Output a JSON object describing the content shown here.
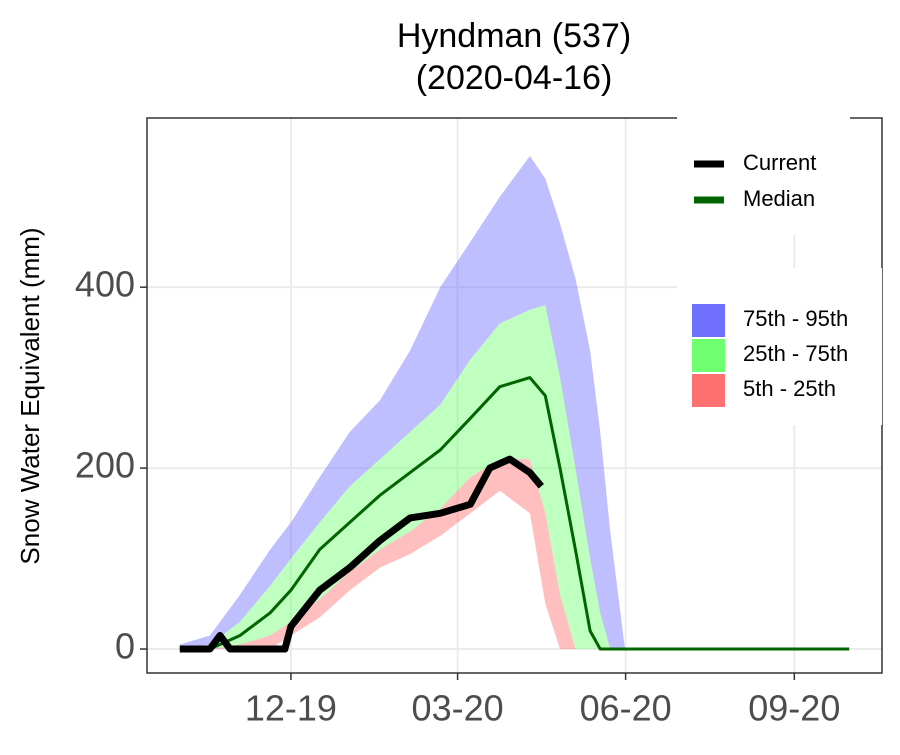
{
  "chart_data": {
    "type": "line",
    "title": "Hyndman (537)",
    "subtitle": "(2020-04-16)",
    "ylabel": "Snow Water Equivalent (mm)",
    "xlim": [
      2019.7,
      2020.798
    ],
    "xticks": [
      {
        "value": 2019.915,
        "label": "12-19"
      },
      {
        "value": 2020.164,
        "label": "03-20"
      },
      {
        "value": 2020.415,
        "label": "06-20"
      },
      {
        "value": 2020.667,
        "label": "09-20"
      }
    ],
    "ylim": [
      -26.5,
      587
    ],
    "yticks": [
      0,
      200,
      400
    ],
    "grid": true,
    "x": [
      2019.749,
      2019.794,
      2019.839,
      2019.884,
      2019.915,
      2019.958,
      2020.003,
      2020.048,
      2020.093,
      2020.138,
      2020.183,
      2020.227,
      2020.272,
      2020.295,
      2020.317,
      2020.34,
      2020.362,
      2020.377,
      2020.392,
      2020.414,
      2020.452,
      2020.526,
      2020.601,
      2020.676,
      2020.749
    ],
    "bands": [
      {
        "name": "75th - 95th",
        "color": "#7070ff",
        "lower": [
          0,
          5,
          30,
          70,
          100,
          140,
          180,
          210,
          240,
          270,
          320,
          360,
          375,
          380,
          300,
          200,
          100,
          40,
          0,
          0,
          0,
          0,
          0,
          0,
          0
        ],
        "upper": [
          5,
          15,
          60,
          110,
          140,
          190,
          240,
          275,
          330,
          400,
          450,
          500,
          545,
          520,
          470,
          410,
          330,
          240,
          130,
          0,
          0,
          0,
          0,
          0,
          0
        ]
      },
      {
        "name": "25th - 75th",
        "color": "#70ff70",
        "lower": [
          0,
          0,
          5,
          15,
          30,
          55,
          85,
          110,
          130,
          155,
          190,
          210,
          210,
          150,
          60,
          0,
          0,
          0,
          0,
          0,
          0,
          0,
          0,
          0,
          0
        ],
        "upper": [
          0,
          5,
          30,
          70,
          100,
          140,
          180,
          210,
          240,
          270,
          320,
          360,
          375,
          380,
          300,
          200,
          100,
          40,
          0,
          0,
          0,
          0,
          0,
          0,
          0
        ]
      },
      {
        "name": "5th - 25th",
        "color": "#ff7070",
        "lower": [
          0,
          0,
          0,
          0,
          15,
          35,
          65,
          90,
          105,
          125,
          150,
          175,
          150,
          50,
          0,
          0,
          0,
          0,
          0,
          0,
          0,
          0,
          0,
          0,
          0
        ],
        "upper": [
          0,
          0,
          5,
          15,
          30,
          55,
          85,
          110,
          130,
          155,
          190,
          210,
          210,
          150,
          60,
          0,
          0,
          0,
          0,
          0,
          0,
          0,
          0,
          0,
          0
        ]
      }
    ],
    "series": [
      {
        "name": "Current",
        "color": "#000000",
        "x": [
          2019.749,
          2019.794,
          2019.809,
          2019.824,
          2019.884,
          2019.906,
          2019.915,
          2019.958,
          2020.003,
          2020.048,
          2020.093,
          2020.138,
          2020.183,
          2020.212,
          2020.242,
          2020.272,
          2020.289
        ],
        "values": [
          0,
          0,
          15,
          0,
          0,
          0,
          25,
          65,
          90,
          120,
          145,
          150,
          160,
          200,
          210,
          195,
          180
        ]
      },
      {
        "name": "Median",
        "color": "#006400",
        "values": [
          0,
          0,
          15,
          40,
          65,
          110,
          140,
          170,
          195,
          220,
          255,
          290,
          300,
          280,
          200,
          110,
          20,
          0,
          0,
          0,
          0,
          0,
          0,
          0,
          0
        ]
      }
    ]
  }
}
